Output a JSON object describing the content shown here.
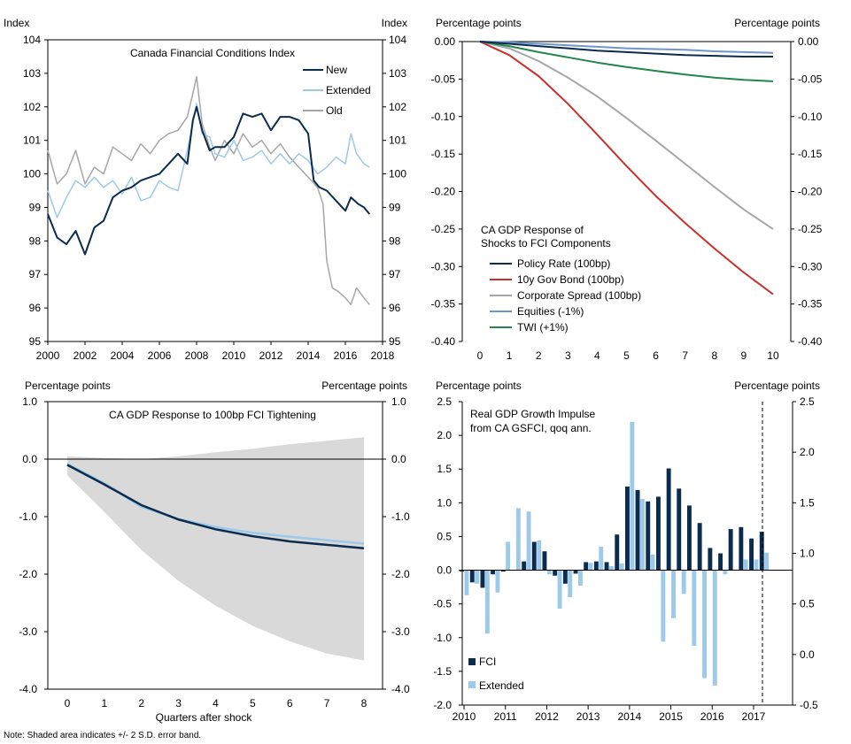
{
  "footnote": "Note: Shaded area indicates +/- 2 S.D. error band.",
  "colors": {
    "new": "#0b2b4f",
    "extended": "#9ccae8",
    "old": "#a6a6a6",
    "policy": "#0b2b4f",
    "gov": "#c8302c",
    "corp": "#a6a6a6",
    "equities": "#6f95cf",
    "twi": "#22874a",
    "fci": "#0b2b4f",
    "ext": "#9ccae8",
    "band": "#d9d9d9"
  },
  "chart_data": [
    {
      "id": "fci-index",
      "type": "line",
      "title": "Canada Financial Conditions Index",
      "ylabel_left": "Index",
      "ylabel_right": "Index",
      "ylim": [
        95,
        104
      ],
      "xlim": [
        2000,
        2018
      ],
      "yticks": [
        "95",
        "96",
        "97",
        "98",
        "99",
        "100",
        "101",
        "102",
        "103",
        "104"
      ],
      "xticks": [
        "2000",
        "2002",
        "2004",
        "2006",
        "2008",
        "2010",
        "2012",
        "2014",
        "2016",
        "2018"
      ],
      "series": [
        {
          "name": "New",
          "points": [
            [
              2000,
              98.8
            ],
            [
              2000.5,
              98.1
            ],
            [
              2001,
              97.9
            ],
            [
              2001.5,
              98.3
            ],
            [
              2002,
              97.6
            ],
            [
              2002.5,
              98.4
            ],
            [
              2003,
              98.6
            ],
            [
              2003.5,
              99.3
            ],
            [
              2004,
              99.5
            ],
            [
              2004.5,
              99.6
            ],
            [
              2005,
              99.8
            ],
            [
              2005.5,
              99.9
            ],
            [
              2006,
              100.0
            ],
            [
              2006.5,
              100.3
            ],
            [
              2007,
              100.6
            ],
            [
              2007.5,
              100.3
            ],
            [
              2007.8,
              101.6
            ],
            [
              2008,
              102.0
            ],
            [
              2008.3,
              101.3
            ],
            [
              2008.7,
              100.7
            ],
            [
              2009,
              100.8
            ],
            [
              2009.5,
              100.8
            ],
            [
              2010,
              101.1
            ],
            [
              2010.5,
              101.8
            ],
            [
              2011,
              101.7
            ],
            [
              2011.5,
              101.8
            ],
            [
              2012,
              101.3
            ],
            [
              2012.5,
              101.7
            ],
            [
              2013,
              101.7
            ],
            [
              2013.5,
              101.6
            ],
            [
              2014,
              101.2
            ],
            [
              2014.3,
              99.8
            ],
            [
              2014.6,
              99.6
            ],
            [
              2015,
              99.5
            ],
            [
              2015.5,
              99.2
            ],
            [
              2016,
              98.9
            ],
            [
              2016.3,
              99.3
            ],
            [
              2016.7,
              99.1
            ],
            [
              2017,
              99.0
            ],
            [
              2017.3,
              98.8
            ]
          ]
        },
        {
          "name": "Extended",
          "points": [
            [
              2000,
              99.5
            ],
            [
              2000.5,
              98.7
            ],
            [
              2001,
              99.3
            ],
            [
              2001.5,
              99.8
            ],
            [
              2002,
              99.6
            ],
            [
              2002.5,
              99.9
            ],
            [
              2003,
              99.6
            ],
            [
              2003.5,
              99.8
            ],
            [
              2004,
              99.4
            ],
            [
              2004.5,
              99.9
            ],
            [
              2005,
              99.2
            ],
            [
              2005.5,
              99.3
            ],
            [
              2006,
              99.8
            ],
            [
              2006.5,
              99.6
            ],
            [
              2007,
              99.5
            ],
            [
              2007.5,
              100.7
            ],
            [
              2007.8,
              101.5
            ],
            [
              2008,
              102.1
            ],
            [
              2008.3,
              101.2
            ],
            [
              2008.7,
              101.1
            ],
            [
              2009,
              100.6
            ],
            [
              2009.5,
              100.5
            ],
            [
              2010,
              101.0
            ],
            [
              2010.5,
              100.4
            ],
            [
              2011,
              100.5
            ],
            [
              2011.5,
              100.7
            ],
            [
              2012,
              100.3
            ],
            [
              2012.5,
              100.6
            ],
            [
              2013,
              100.3
            ],
            [
              2013.5,
              100.6
            ],
            [
              2014,
              100.4
            ],
            [
              2014.5,
              100.0
            ],
            [
              2015,
              100.2
            ],
            [
              2015.5,
              100.5
            ],
            [
              2016,
              100.3
            ],
            [
              2016.3,
              101.2
            ],
            [
              2016.6,
              100.6
            ],
            [
              2017,
              100.3
            ],
            [
              2017.3,
              100.2
            ]
          ]
        },
        {
          "name": "Old",
          "points": [
            [
              2000,
              100.7
            ],
            [
              2000.5,
              99.7
            ],
            [
              2001,
              100.0
            ],
            [
              2001.5,
              100.7
            ],
            [
              2002,
              99.7
            ],
            [
              2002.5,
              100.2
            ],
            [
              2003,
              100.0
            ],
            [
              2003.5,
              100.8
            ],
            [
              2004,
              100.6
            ],
            [
              2004.5,
              100.4
            ],
            [
              2005,
              100.9
            ],
            [
              2005.5,
              100.6
            ],
            [
              2006,
              101.0
            ],
            [
              2006.5,
              101.2
            ],
            [
              2007,
              101.3
            ],
            [
              2007.5,
              101.7
            ],
            [
              2007.8,
              102.4
            ],
            [
              2008,
              102.9
            ],
            [
              2008.3,
              101.5
            ],
            [
              2008.7,
              100.8
            ],
            [
              2009,
              100.4
            ],
            [
              2009.5,
              101.0
            ],
            [
              2010,
              100.6
            ],
            [
              2010.5,
              101.2
            ],
            [
              2011,
              100.8
            ],
            [
              2011.5,
              101.0
            ],
            [
              2012,
              100.6
            ],
            [
              2012.5,
              100.9
            ],
            [
              2013,
              100.5
            ],
            [
              2013.5,
              100.2
            ],
            [
              2014,
              99.9
            ],
            [
              2014.5,
              99.6
            ],
            [
              2014.8,
              99.1
            ],
            [
              2015,
              97.4
            ],
            [
              2015.3,
              96.6
            ],
            [
              2015.6,
              96.5
            ],
            [
              2016,
              96.3
            ],
            [
              2016.3,
              96.1
            ],
            [
              2016.6,
              96.6
            ],
            [
              2017,
              96.3
            ],
            [
              2017.3,
              96.1
            ]
          ]
        }
      ]
    },
    {
      "id": "components",
      "type": "line",
      "title": "CA GDP Response of Shocks to FCI Components",
      "title_lines": [
        "CA GDP Response of",
        "Shocks to FCI Components"
      ],
      "ylabel_left": "Percentage points",
      "ylabel_right": "Percentage points",
      "ylim": [
        -0.4,
        0.0
      ],
      "xlim": [
        0,
        10
      ],
      "yticks": [
        "0.00",
        "-0.05",
        "-0.10",
        "-0.15",
        "-0.20",
        "-0.25",
        "-0.30",
        "-0.35",
        "-0.40"
      ],
      "xticks": [
        "0",
        "1",
        "2",
        "3",
        "4",
        "5",
        "6",
        "7",
        "8",
        "9",
        "10"
      ],
      "series": [
        {
          "name": "Policy Rate (100bp)",
          "values": [
            0,
            -0.003,
            -0.006,
            -0.009,
            -0.012,
            -0.014,
            -0.016,
            -0.018,
            -0.019,
            -0.02,
            -0.02
          ]
        },
        {
          "name": "10y Gov Bond (100bp)",
          "values": [
            0,
            -0.018,
            -0.046,
            -0.083,
            -0.124,
            -0.166,
            -0.206,
            -0.242,
            -0.276,
            -0.308,
            -0.337
          ]
        },
        {
          "name": "Corporate Spread (100bp)",
          "values": [
            0,
            -0.009,
            -0.026,
            -0.048,
            -0.073,
            -0.102,
            -0.132,
            -0.163,
            -0.194,
            -0.224,
            -0.25
          ]
        },
        {
          "name": "Equities (-1%)",
          "values": [
            0,
            -0.001,
            -0.003,
            -0.005,
            -0.007,
            -0.009,
            -0.01,
            -0.011,
            -0.013,
            -0.014,
            -0.015
          ]
        },
        {
          "name": "TWI (+1%)",
          "values": [
            0,
            -0.006,
            -0.014,
            -0.021,
            -0.028,
            -0.034,
            -0.039,
            -0.044,
            -0.048,
            -0.051,
            -0.053
          ]
        }
      ]
    },
    {
      "id": "tightening",
      "type": "line",
      "title": "CA GDP Response to 100bp FCI Tightening",
      "ylabel_left": "Percentage points",
      "ylabel_right": "Percentage points",
      "xlabel": "Quarters after shock",
      "ylim": [
        -4.0,
        1.0
      ],
      "xlim": [
        0,
        8
      ],
      "yticks": [
        "1.0",
        "0.0",
        "-1.0",
        "-2.0",
        "-3.0",
        "-4.0"
      ],
      "xticks": [
        "0",
        "1",
        "2",
        "3",
        "4",
        "5",
        "6",
        "7",
        "8"
      ],
      "series": [
        {
          "name": "Response",
          "values": [
            -0.1,
            -0.44,
            -0.8,
            -1.05,
            -1.22,
            -1.34,
            -1.43,
            -1.49,
            -1.55
          ]
        },
        {
          "name": "Response (light)",
          "values": [
            -0.08,
            -0.42,
            -0.83,
            -1.04,
            -1.18,
            -1.28,
            -1.35,
            -1.41,
            -1.47
          ]
        },
        {
          "name": "Band upper",
          "values": [
            0.05,
            0.02,
            0.0,
            0.05,
            0.12,
            0.18,
            0.26,
            0.32,
            0.38
          ]
        },
        {
          "name": "Band lower",
          "values": [
            -0.28,
            -0.92,
            -1.58,
            -2.12,
            -2.55,
            -2.9,
            -3.17,
            -3.38,
            -3.5
          ]
        }
      ]
    },
    {
      "id": "impulse",
      "type": "bar",
      "title": "Real GDP Growth Impulse from CA GSFCI, qoq ann.",
      "title_lines": [
        "Real GDP Growth Impulse",
        "from CA GSFCI, qoq ann."
      ],
      "ylabel_left": "Percentage points",
      "ylabel_right": "Percentage points",
      "ylim_left": [
        -2.0,
        2.5
      ],
      "ylim_right": [
        -0.5,
        2.5
      ],
      "yticks_left": [
        "2.5",
        "2.0",
        "1.5",
        "1.0",
        "0.5",
        "0.0",
        "-0.5",
        "-1.0",
        "-1.5",
        "-2.0"
      ],
      "yticks_right": [
        "2.5",
        "2.0",
        "1.5",
        "1.0",
        "0.5",
        "0.0",
        "-0.5"
      ],
      "xticks": [
        "2010",
        "2011",
        "2012",
        "2013",
        "2014",
        "2015",
        "2016",
        "2017"
      ],
      "vline_at": "2017Q1",
      "series": [
        {
          "name": "FCI",
          "values": [
            -0.02,
            -0.18,
            -0.26,
            -0.06,
            -0.02,
            0.0,
            0.13,
            0.42,
            0.28,
            -0.08,
            -0.2,
            -0.05,
            0.12,
            0.13,
            0.12,
            0.53,
            1.24,
            1.19,
            1.02,
            1.09,
            1.51,
            1.21,
            0.96,
            0.7,
            0.33,
            0.25,
            0.61,
            0.64,
            0.47,
            0.57
          ]
        },
        {
          "name": "Extended",
          "values": [
            -0.37,
            -0.2,
            -0.94,
            -0.33,
            0.42,
            0.92,
            0.87,
            0.44,
            -0.06,
            -0.57,
            -0.4,
            -0.23,
            0.11,
            0.35,
            0.06,
            0.1,
            2.2,
            1.06,
            0.23,
            -1.06,
            -0.71,
            -0.35,
            -1.12,
            -1.6,
            -1.71,
            -0.06,
            0.01,
            0.16,
            0.16,
            0.26
          ]
        }
      ]
    }
  ]
}
